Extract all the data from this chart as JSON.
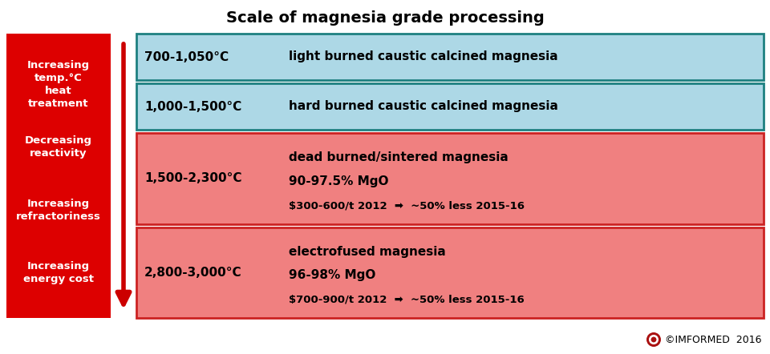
{
  "title": "Scale of magnesia grade processing",
  "title_fontsize": 14,
  "title_fontweight": "bold",
  "left_box": {
    "bg_color": "#DD0000",
    "text_color": "#FFFFFF",
    "sections": [
      {
        "lines": [
          "Increasing",
          "temp.°C",
          "heat",
          "treatment"
        ]
      },
      {
        "lines": [
          "Decreasing",
          "reactivity"
        ]
      },
      {
        "lines": [
          "Increasing",
          "refractoriness"
        ]
      },
      {
        "lines": [
          "Increasing",
          "energy cost"
        ]
      }
    ]
  },
  "rows": [
    {
      "temp": "700-1,050°C",
      "description": "light burned caustic calcined magnesia",
      "sub1": "",
      "sub2": "",
      "bg_color": "#ADD8E6",
      "border_color": "#1E8080",
      "text_lines": 1
    },
    {
      "temp": "1,000-1,500°C",
      "description": "hard burned caustic calcined magnesia",
      "sub1": "",
      "sub2": "",
      "bg_color": "#ADD8E6",
      "border_color": "#1E8080",
      "text_lines": 1
    },
    {
      "temp": "1,500-2,300°C",
      "description": "dead burned/sintered magnesia",
      "sub1": "90-97.5% MgO",
      "sub2": "$300-600/t 2012  ➡  ~50% less 2015-16",
      "bg_color": "#F08080",
      "border_color": "#CC2222",
      "text_lines": 3
    },
    {
      "temp": "2,800-3,000°C",
      "description": "electrofused magnesia",
      "sub1": "96-98% MgO",
      "sub2": "$700-900/t 2012  ➡  ~50% less 2015-16",
      "bg_color": "#F08080",
      "border_color": "#CC2222",
      "text_lines": 3
    }
  ],
  "copyright": "©IMFORMED  2016",
  "logo_color": "#AA1111",
  "arrow_color": "#CC0000",
  "fig_w": 9.6,
  "fig_h": 4.42,
  "dpi": 100
}
